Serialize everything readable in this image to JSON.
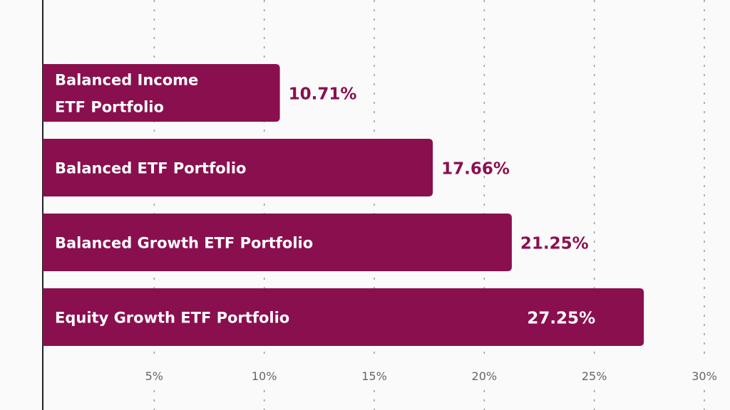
{
  "chart_data": {
    "type": "bar",
    "orientation": "horizontal",
    "categories": [
      [
        "Balanced Income",
        "ETF Portfolio"
      ],
      [
        "Balanced ETF Portfolio"
      ],
      [
        "Balanced Growth ETF Portfolio"
      ],
      [
        "Equity Growth ETF Portfolio"
      ]
    ],
    "values": [
      10.71,
      17.66,
      21.25,
      27.25
    ],
    "value_labels": [
      "10.71%",
      "17.66%",
      "21.25%",
      "27.25%"
    ],
    "xlim": [
      0,
      30
    ],
    "x_ticks": [
      5,
      10,
      15,
      20,
      25,
      30
    ],
    "x_tick_labels": [
      "5%",
      "10%",
      "15%",
      "20%",
      "25%",
      "30%"
    ],
    "grid": "vertical dotted",
    "colors": {
      "bar": "#8a0f4e",
      "value_label": "#8a0f4e",
      "value_label_inside": "#ffffff",
      "grid": "#9a9a9a",
      "tick_label": "#666666",
      "axis": "#222222"
    }
  }
}
